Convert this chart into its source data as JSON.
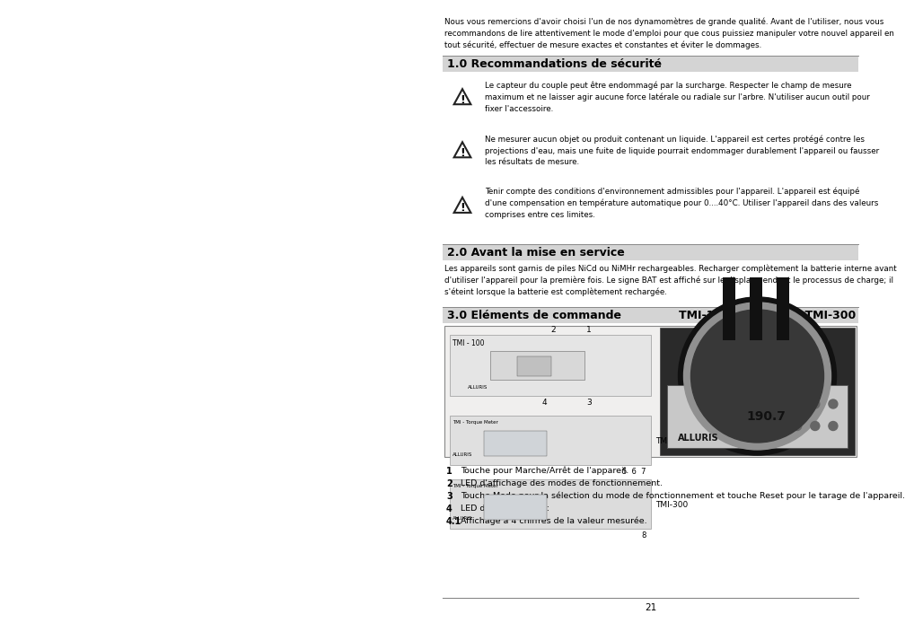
{
  "bg_color": "#ffffff",
  "page_num": "21",
  "intro_text": "Nous vous remercions d'avoir choisi l'un de nos dynamomètres de grande qualité. Avant de l'utiliser, nous vous\nrecommandons de lire attentivement le mode d'emploi pour que cous puissiez manipuler votre nouvel appareil en\ntout sécurité, effectuer de mesure exactes et constantes et éviter le dommages.",
  "section1_title": "1.0 Recommandations de sécurité",
  "warn1": "Le capteur du couple peut être endommagé par la surcharge. Respecter le champ de mesure\nmaximum et ne laisser agir aucune force latérale ou radiale sur l'arbre. N'utiliser aucun outil pour\nfixer l'accessoire.",
  "warn2": "Ne mesurer aucun objet ou produit contenant un liquide. L'appareil est certes protégé contre les\nprojections d'eau, mais une fuite de liquide pourrait endommager durablement l'appareil ou fausser\nles résultats de mesure.",
  "warn3": "Tenir compte des conditions d'environnement admissibles pour l'appareil. L'appareil est équipé\nd'une compensation en température automatique pour 0....40°C. Utiliser l'appareil dans des valeurs\ncomprises entre ces limites.",
  "section2_title": "2.0 Avant la mise en service",
  "section2_text": "Les appareils sont garnis de piles NiCd ou NiMHr rechargeables. Recharger complètement la batterie interne avant\nd'utiliser l'appareil pour la première fois. Le signe BAT est affiché sur le display pendant le processus de charge; il\ns'éteint lorsque la batterie est complètement rechargée.",
  "section3_title": "3.0 Eléments de commande",
  "section3_right": "TMI-100 | TMI-200 | TMI-300",
  "legend": [
    [
      "1",
      "Touche pour Marche/Arrêt de l'appareil."
    ],
    [
      "2",
      "LED d'affichage des modes de fonctionnement."
    ],
    [
      "3",
      "Touche Mode pour la sélection du mode de fonctionnement et touche Reset pour le tarage de l'appareil."
    ],
    [
      "4",
      "LED du display avec:"
    ],
    [
      "4.1",
      "Affichage à 4 chiffres de la valeur mesurée."
    ]
  ],
  "text_color": "#000000",
  "header_bg": "#d4d4d4",
  "box_edge": "#aaaaaa"
}
